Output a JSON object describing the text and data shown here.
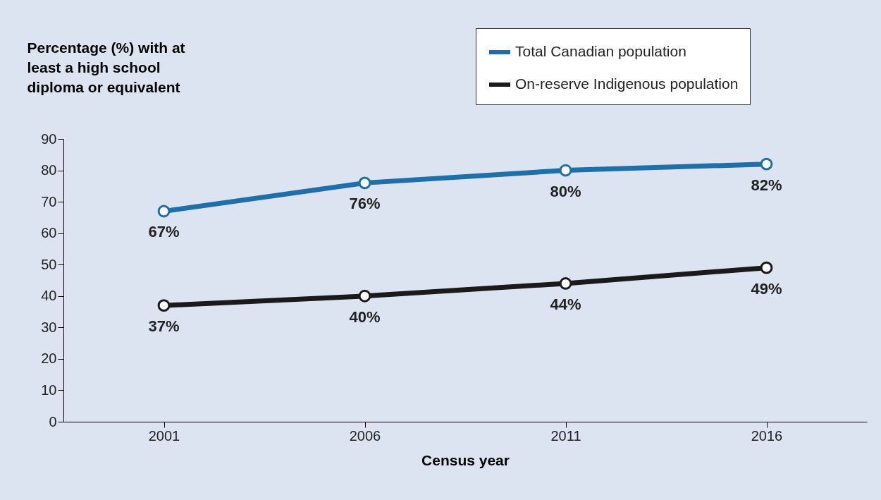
{
  "chart_data": {
    "type": "line",
    "ylabel": "Percentage (%) with at least a high school diploma or equivalent",
    "xlabel": "Census year",
    "categories": [
      "2001",
      "2006",
      "2011",
      "2016"
    ],
    "series": [
      {
        "name": "Total Canadian population",
        "color": "#1f6fa8",
        "values": [
          67,
          76,
          80,
          82
        ],
        "value_labels": [
          "67%",
          "76%",
          "80%",
          "82%"
        ]
      },
      {
        "name": "On-reserve Indigenous population",
        "color": "#1a1a1a",
        "values": [
          37,
          40,
          44,
          49
        ],
        "value_labels": [
          "37%",
          "40%",
          "44%",
          "49%"
        ]
      }
    ],
    "ylim": [
      0,
      90
    ],
    "yticks": [
      0,
      10,
      20,
      30,
      40,
      50,
      60,
      70,
      80,
      90
    ],
    "grid": false,
    "legend": "top right",
    "marker": "circle",
    "line_style": "solid"
  }
}
